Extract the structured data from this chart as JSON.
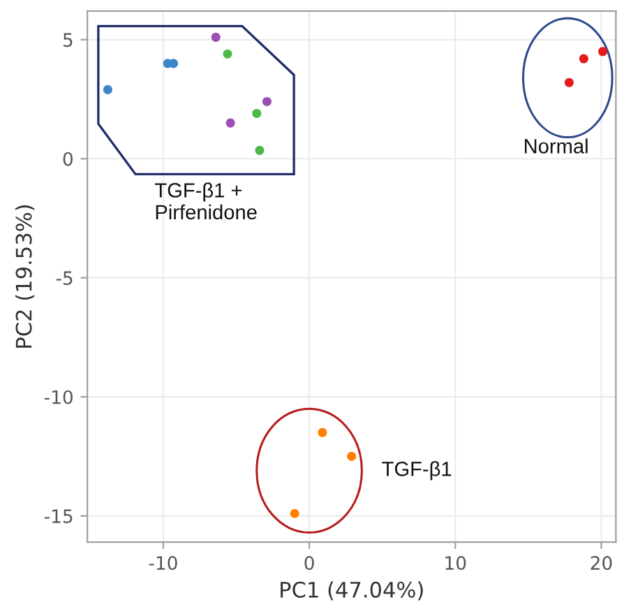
{
  "chart_data": {
    "type": "scatter",
    "xlabel": "PC1 (47.04%)",
    "ylabel": "PC2 (19.53%)",
    "xlim": [
      -15.2,
      21
    ],
    "ylim": [
      -16.1,
      6.2
    ],
    "xticks": [
      -10,
      0,
      10,
      20
    ],
    "yticks": [
      -15,
      -10,
      -5,
      0,
      5
    ],
    "grid": true,
    "legend": false,
    "marker": "circle",
    "series": [
      {
        "color": "#3a86c8",
        "x": [
          -13.8,
          -9.7,
          -9.3
        ],
        "values": [
          2.9,
          4.0,
          4.0
        ]
      },
      {
        "color": "#9b4fb4",
        "x": [
          -6.4,
          -2.9,
          -5.4
        ],
        "values": [
          5.1,
          2.4,
          1.5
        ]
      },
      {
        "color": "#4cb847",
        "x": [
          -5.6,
          -3.6,
          -3.4
        ],
        "values": [
          4.4,
          1.9,
          0.35
        ]
      },
      {
        "color": "#e41a1c",
        "x": [
          20.1,
          18.8,
          17.8
        ],
        "values": [
          4.5,
          4.2,
          3.2
        ]
      },
      {
        "color": "#ff7f00",
        "x": [
          0.9,
          2.9,
          -1.0
        ],
        "values": [
          -11.5,
          -12.5,
          -14.9
        ]
      }
    ],
    "annotations": [
      "TGF-β1 +\nPirfenidone",
      "Normal",
      "TGF-β1"
    ]
  }
}
